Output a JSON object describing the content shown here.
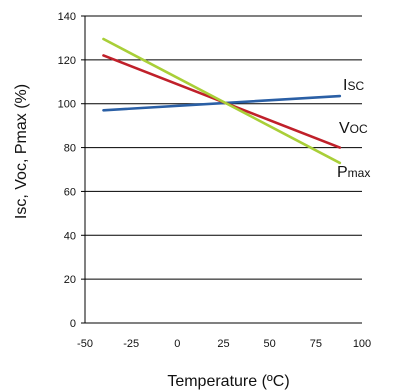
{
  "chart_data": {
    "type": "line",
    "xlabel": "Temperature (ºC)",
    "ylabel": "Isc, Voc, Pmax (%)",
    "xlim": [
      -50,
      100
    ],
    "ylim": [
      0,
      140
    ],
    "x_ticks": [
      "-50",
      "-25",
      "0",
      "25",
      "50",
      "75",
      "100"
    ],
    "y_ticks": [
      "0",
      "20",
      "40",
      "60",
      "80",
      "100",
      "120",
      "140"
    ],
    "grid": "horizontal",
    "series": [
      {
        "name": "Isc",
        "label_main": "I",
        "label_sub": "SC",
        "color": "#2a5fa5",
        "x": [
          -40,
          88
        ],
        "y": [
          97,
          103.5
        ]
      },
      {
        "name": "Voc",
        "label_main": "V",
        "label_sub": "OC",
        "color": "#c0202a",
        "x": [
          -40,
          88
        ],
        "y": [
          122,
          80
        ]
      },
      {
        "name": "Pmax",
        "label_main": "P",
        "label_sub": "max",
        "color": "#a9cf38",
        "x": [
          -40,
          88
        ],
        "y": [
          129.5,
          73
        ]
      }
    ]
  }
}
